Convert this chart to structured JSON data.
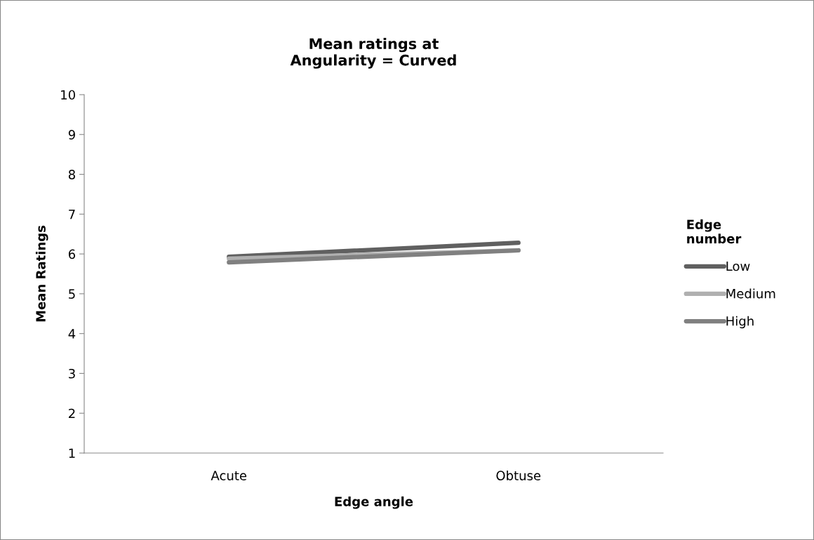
{
  "chart_data": {
    "type": "line",
    "title": "Mean ratings at\nAngularity = Curved",
    "xlabel": "Edge angle",
    "ylabel": "Mean Ratings",
    "legend_title": "Edge\nnumber",
    "categories": [
      "Acute",
      "Obtuse"
    ],
    "series": [
      {
        "name": "Low",
        "color": "#606060",
        "values": [
          5.93,
          6.28
        ]
      },
      {
        "name": "Medium",
        "color": "#b0b0b0",
        "values": [
          5.88,
          6.09
        ]
      },
      {
        "name": "High",
        "color": "#808080",
        "values": [
          5.79,
          6.09
        ]
      }
    ],
    "ylim": [
      1,
      10
    ],
    "yticks": [
      1,
      2,
      3,
      4,
      5,
      6,
      7,
      8,
      9,
      10
    ],
    "grid": false,
    "legend": "right",
    "marker": "none",
    "line_style": "solid"
  }
}
